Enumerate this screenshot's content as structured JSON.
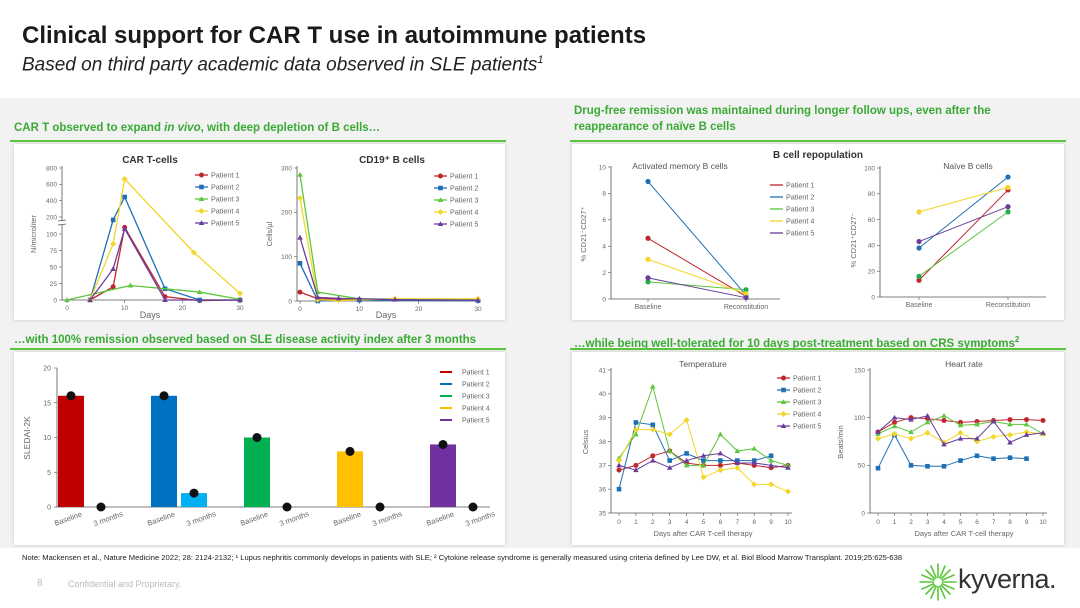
{
  "header": {
    "title": "Clinical support for CAR T use in autoimmune patients",
    "subtitle": "Based on third party academic data observed in SLE patients",
    "subtitle_sup": "1"
  },
  "sections": {
    "top_left": {
      "prefix": "CAR T observed to expand ",
      "italic": "in vivo",
      "suffix": ", with deep depletion of B cells…"
    },
    "top_right": {
      "line1": "Drug-free remission was maintained during longer follow ups, even after the",
      "line2": "reappearance of naïve B cells"
    },
    "bottom_left": {
      "text": "…with 100% remission observed based on SLE disease activity index after 3 months"
    },
    "bottom_right": {
      "text": "…while being well-tolerated for 10 days post-treatment based on CRS symptoms",
      "sup": "2"
    },
    "repopulation_title": "B cell repopulation"
  },
  "colors": {
    "accent": "#3aaa35",
    "patient1": "#c0272d",
    "patient2": "#1f6fb5",
    "patient3": "#5cc63c",
    "patient4": "#f2d72a",
    "patient5": "#6a3d9a"
  },
  "chart_data": [
    {
      "type": "line",
      "title": "CAR T-cells",
      "xlabel": "Days",
      "ylabel": "N/microliter",
      "xlim": [
        0,
        30
      ],
      "xticks": [
        "0",
        "10",
        "20",
        "30"
      ],
      "ylim": [
        0,
        800
      ],
      "y_axis_break": [
        110,
        200
      ],
      "yticks": [
        "0",
        "25",
        "50",
        "75",
        "100",
        "200",
        "400",
        "600",
        "800"
      ],
      "legend": "top-right",
      "series": [
        {
          "name": "Patient 1",
          "marker": "circle",
          "points": [
            [
              4,
              0
            ],
            [
              8,
              20
            ],
            [
              10,
              110
            ],
            [
              17,
              5
            ],
            [
              23,
              -1
            ],
            [
              30,
              0
            ]
          ]
        },
        {
          "name": "Patient 2",
          "marker": "square",
          "points": [
            [
              4,
              0
            ],
            [
              8,
              175
            ],
            [
              10,
              445
            ],
            [
              17,
              17
            ],
            [
              23,
              0
            ],
            [
              30,
              0
            ]
          ]
        },
        {
          "name": "Patient 3",
          "marker": "triangle",
          "points": [
            [
              0,
              0
            ],
            [
              11,
              22
            ],
            [
              23,
              12
            ],
            [
              30,
              1
            ]
          ]
        },
        {
          "name": "Patient 4",
          "marker": "diamond",
          "points": [
            [
              4,
              0
            ],
            [
              8,
              85
            ],
            [
              10,
              665
            ],
            [
              22,
              72
            ],
            [
              30,
              10
            ]
          ]
        },
        {
          "name": "Patient 5",
          "marker": "triangle",
          "points": [
            [
              4,
              0
            ],
            [
              8,
              47
            ],
            [
              10,
              108
            ],
            [
              17,
              0
            ],
            [
              30,
              0
            ]
          ]
        }
      ]
    },
    {
      "type": "line",
      "title": "CD19⁺ B cells",
      "xlabel": "Days",
      "ylabel": "Cells/µl",
      "xlim": [
        0,
        30
      ],
      "xticks": [
        "0",
        "10",
        "20",
        "30"
      ],
      "ylim": [
        0,
        300
      ],
      "yticks": [
        "0",
        "100",
        "200",
        "300"
      ],
      "legend": "top-right",
      "series": [
        {
          "name": "Patient 1",
          "marker": "circle",
          "points": [
            [
              0,
              20
            ],
            [
              3,
              5
            ],
            [
              10,
              3
            ],
            [
              30,
              2
            ]
          ]
        },
        {
          "name": "Patient 2",
          "marker": "square",
          "points": [
            [
              0,
              85
            ],
            [
              3,
              0
            ],
            [
              10,
              2
            ],
            [
              30,
              1
            ]
          ]
        },
        {
          "name": "Patient 3",
          "marker": "triangle",
          "points": [
            [
              0,
              285
            ],
            [
              3,
              20
            ],
            [
              10,
              5
            ],
            [
              30,
              3
            ]
          ]
        },
        {
          "name": "Patient 4",
          "marker": "diamond",
          "points": [
            [
              0,
              232
            ],
            [
              3,
              3
            ],
            [
              6.5,
              1
            ],
            [
              16,
              5
            ],
            [
              30,
              5
            ]
          ]
        },
        {
          "name": "Patient 5",
          "marker": "triangle",
          "points": [
            [
              0,
              143
            ],
            [
              3,
              8
            ],
            [
              6.5,
              6
            ],
            [
              10,
              5
            ],
            [
              16,
              3
            ],
            [
              30,
              2
            ]
          ]
        }
      ]
    },
    {
      "type": "line",
      "title": "Activated memory B cells",
      "xlabel": "",
      "ylabel": "% CD21⁻CD27⁺",
      "categories": [
        "Baseline",
        "Reconstitution"
      ],
      "ylim": [
        0,
        10
      ],
      "yticks": [
        "0",
        "2",
        "4",
        "6",
        "8",
        "10"
      ],
      "legend": "right",
      "series": [
        {
          "name": "Patient 1",
          "values": [
            4.6,
            0.2
          ]
        },
        {
          "name": "Patient 2",
          "values": [
            8.9,
            0.3
          ]
        },
        {
          "name": "Patient 3",
          "values": [
            1.3,
            0.7
          ]
        },
        {
          "name": "Patient 4",
          "values": [
            3.0,
            0.4
          ]
        },
        {
          "name": "Patient 5",
          "values": [
            1.6,
            0.1
          ]
        }
      ]
    },
    {
      "type": "line",
      "title": "Naïve B cells",
      "xlabel": "",
      "ylabel": "% CD21⁺CD27⁻",
      "categories": [
        "Baseline",
        "Reconstitution"
      ],
      "ylim": [
        0,
        100
      ],
      "yticks": [
        "0",
        "20",
        "40",
        "60",
        "80",
        "100"
      ],
      "series": [
        {
          "values": [
            13,
            83
          ]
        },
        {
          "values": [
            38,
            93
          ]
        },
        {
          "values": [
            16,
            66
          ]
        },
        {
          "values": [
            66,
            85
          ]
        },
        {
          "values": [
            43,
            70
          ]
        }
      ]
    },
    {
      "type": "bar",
      "title": "",
      "xlabel": "",
      "ylabel": "SLEDAI-2K",
      "ylim": [
        0,
        20
      ],
      "yticks": [
        "0",
        "5",
        "10",
        "15",
        "20"
      ],
      "legend": "top-right",
      "categories": [
        "Baseline",
        "3 months"
      ],
      "series": [
        {
          "name": "Patient 1",
          "values": [
            16,
            0
          ],
          "colors": [
            "#c00000",
            "#c00000"
          ]
        },
        {
          "name": "Patient 2",
          "values": [
            16,
            2
          ],
          "colors": [
            "#0070c0",
            "#00b0f0"
          ]
        },
        {
          "name": "Patient 3",
          "values": [
            10,
            0
          ],
          "colors": [
            "#00b050",
            "#00b050"
          ]
        },
        {
          "name": "Patient 4",
          "values": [
            8,
            0
          ],
          "colors": [
            "#ffc000",
            "#ffc000"
          ]
        },
        {
          "name": "Patient 5",
          "values": [
            9,
            0
          ],
          "colors": [
            "#7030a0",
            "#7030a0"
          ]
        }
      ]
    },
    {
      "type": "line",
      "title": "Temperature",
      "xlabel": "Days after CAR T-cell therapy",
      "ylabel": "Celsius",
      "xlim": [
        0,
        10
      ],
      "xticks": [
        "0",
        "1",
        "2",
        "3",
        "4",
        "5",
        "6",
        "7",
        "8",
        "9",
        "10"
      ],
      "ylim": [
        35,
        41
      ],
      "yticks": [
        "35",
        "36",
        "37",
        "38",
        "39",
        "40",
        "41"
      ],
      "legend": "top-right",
      "series": [
        {
          "name": "Patient 1",
          "marker": "circle",
          "values": [
            36.8,
            37.0,
            37.4,
            37.6,
            37.1,
            37.0,
            37.0,
            37.1,
            37.0,
            36.9,
            37.0
          ]
        },
        {
          "name": "Patient 2",
          "marker": "square",
          "values": [
            36.0,
            38.8,
            38.7,
            37.2,
            37.5,
            37.2,
            37.2,
            37.2,
            37.2,
            37.4
          ]
        },
        {
          "name": "Patient 3",
          "marker": "triangle",
          "values": [
            37.3,
            38.3,
            40.3,
            37.6,
            37.0,
            37.0,
            38.3,
            37.6,
            37.7,
            37.2,
            37.0
          ]
        },
        {
          "name": "Patient 4",
          "marker": "diamond",
          "values": [
            37.2,
            38.5,
            38.5,
            38.3,
            38.9,
            36.5,
            36.8,
            36.9,
            36.2,
            36.2,
            35.9
          ]
        },
        {
          "name": "Patient 5",
          "marker": "triangle",
          "values": [
            37.0,
            36.8,
            37.2,
            36.9,
            37.2,
            37.4,
            37.5,
            37.1,
            37.1,
            37.0,
            36.9
          ]
        }
      ]
    },
    {
      "type": "line",
      "title": "Heart rate",
      "xlabel": "Days after CAR T-cell therapy",
      "ylabel": "Beats/min",
      "xlim": [
        0,
        10
      ],
      "xticks": [
        "0",
        "1",
        "2",
        "3",
        "4",
        "5",
        "6",
        "7",
        "8",
        "9",
        "10"
      ],
      "ylim": [
        0,
        150
      ],
      "yticks": [
        "0",
        "50",
        "100",
        "150"
      ],
      "series": [
        {
          "marker": "circle",
          "values": [
            85,
            95,
            100,
            99,
            97,
            95,
            96,
            97,
            98,
            98,
            97
          ]
        },
        {
          "marker": "square",
          "values": [
            47,
            82,
            50,
            49,
            49,
            55,
            60,
            57,
            58,
            57
          ]
        },
        {
          "marker": "triangle",
          "values": [
            83,
            91,
            85,
            95,
            102,
            92,
            93,
            96,
            93,
            93,
            83
          ]
        },
        {
          "marker": "diamond",
          "values": [
            78,
            83,
            78,
            84,
            74,
            84,
            75,
            80,
            82,
            85,
            83
          ]
        },
        {
          "marker": "triangle",
          "values": [
            85,
            100,
            98,
            102,
            72,
            78,
            78,
            96,
            74,
            82,
            84
          ]
        }
      ]
    }
  ],
  "footer": {
    "note": "Note: Mackensen et al., Nature Medicine 2022; 28: 2124-2132; ¹ Lupus nephritis commonly develops in patients with SLE; ² Cytokine release syndrome is generally measured using criteria defined by Lee DW, et al. Biol Blood Marrow Transplant. 2019;25:625-638",
    "page_number": "8",
    "confidential": "Confidential and Proprietary.",
    "logo_text": "kyverna."
  }
}
